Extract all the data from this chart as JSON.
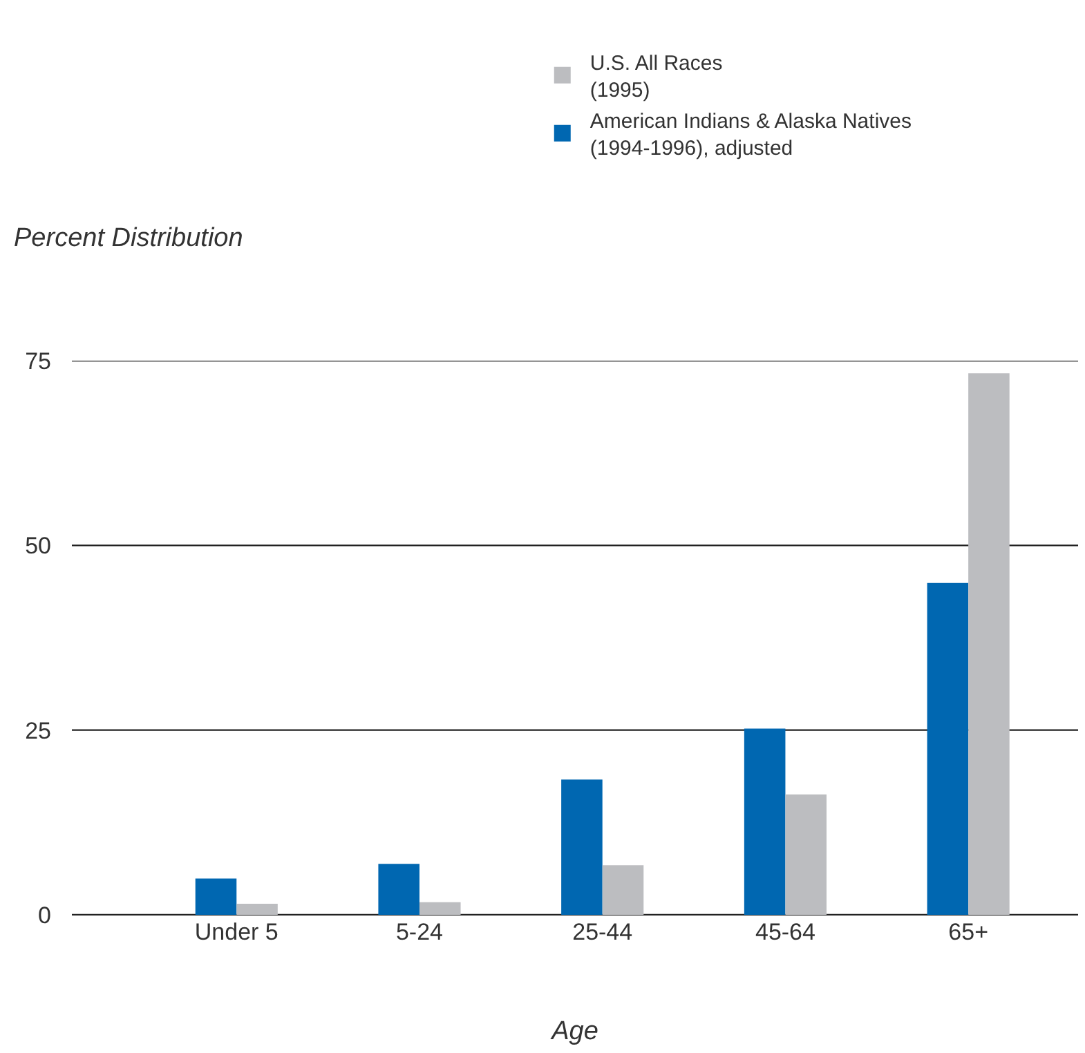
{
  "chart_data": {
    "type": "bar",
    "xlabel": "Age",
    "ylabel": "Percent Distribution",
    "categories": [
      "Under 5",
      "5-24",
      "25-44",
      "45-64",
      "65+"
    ],
    "series": [
      {
        "name": "American Indians & Alaska Natives\n(1994-1996), adjusted",
        "color": "#0067b1",
        "values": [
          4.9,
          6.9,
          18.3,
          25.2,
          44.9
        ]
      },
      {
        "name": "U.S. All Races\n(1995)",
        "color": "#bcbdc0",
        "values": [
          1.5,
          1.7,
          6.7,
          16.3,
          73.3
        ]
      }
    ],
    "ylim": [
      0,
      75
    ],
    "yticks": [
      0,
      25,
      50,
      75
    ],
    "grid": "y",
    "legend": "top"
  }
}
